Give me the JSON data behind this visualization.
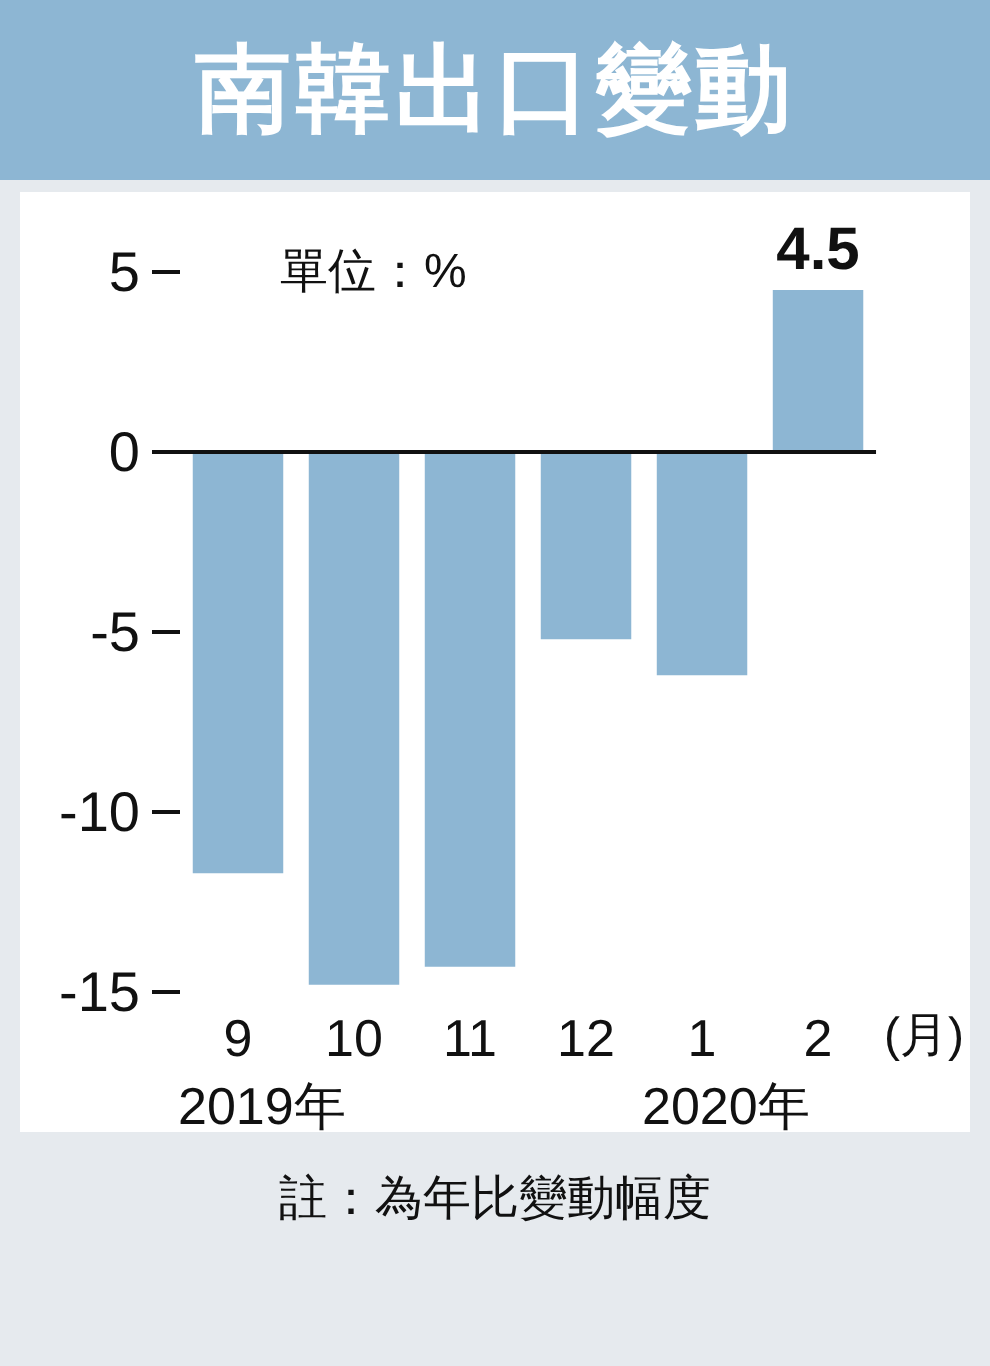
{
  "chart_data": {
    "type": "bar",
    "title": "南韓出口變動",
    "ylabel": "單位：%",
    "xlabel": "(月)",
    "categories": [
      "9",
      "10",
      "11",
      "12",
      "1",
      "2"
    ],
    "values": [
      -11.7,
      -14.8,
      -14.3,
      -5.2,
      -6.2,
      4.5
    ],
    "value_labels": [
      null,
      null,
      null,
      null,
      null,
      "4.5"
    ],
    "color": "#8db6d3",
    "ylim": [
      -15,
      5
    ],
    "yticks": [
      -15,
      -10,
      -5,
      0,
      5
    ],
    "grid": false,
    "ref_lines": [
      {
        "axis": "y",
        "value": 0
      }
    ],
    "annotations": [
      "2019年",
      "2020年",
      "註：為年比變動幅度"
    ]
  }
}
